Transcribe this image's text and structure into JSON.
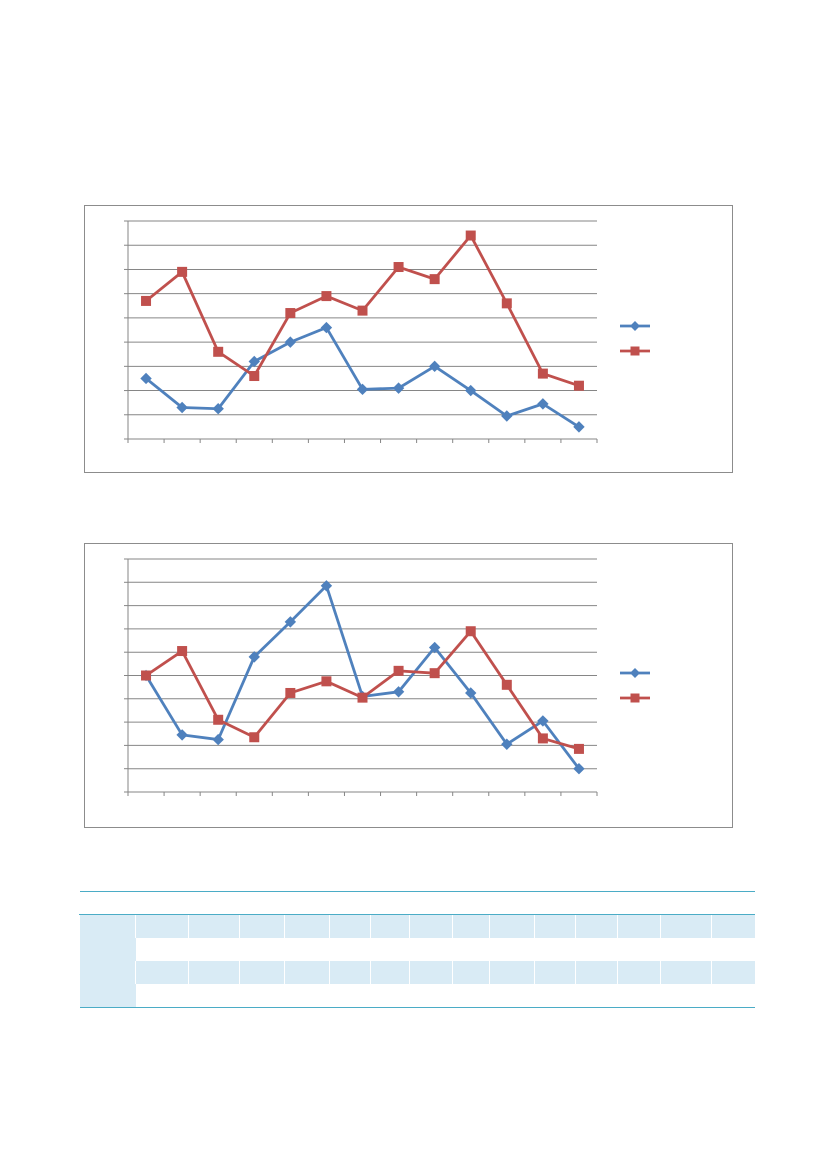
{
  "chart_data": [
    {
      "type": "line",
      "categories": [
        "",
        "",
        "",
        "",
        "",
        "",
        "",
        "",
        "",
        "",
        "",
        "",
        ""
      ],
      "series": [
        {
          "color": "#4f81bd",
          "marker": "diamond",
          "values": [
            2.5,
            1.3,
            1.25,
            3.2,
            4.0,
            4.6,
            2.05,
            2.1,
            3.0,
            2.0,
            0.95,
            1.45,
            0.5
          ]
        },
        {
          "color": "#c0504d",
          "marker": "square",
          "values": [
            5.7,
            6.9,
            3.6,
            2.6,
            5.2,
            5.9,
            5.3,
            7.1,
            6.6,
            8.4,
            5.6,
            2.7,
            2.2
          ]
        }
      ],
      "ylim": [
        0,
        9
      ],
      "grid": true,
      "legend": "right"
    },
    {
      "type": "line",
      "categories": [
        "",
        "",
        "",
        "",
        "",
        "",
        "",
        "",
        "",
        "",
        "",
        "",
        ""
      ],
      "series": [
        {
          "color": "#4f81bd",
          "marker": "diamond",
          "values": [
            5.0,
            2.45,
            2.25,
            5.8,
            7.3,
            8.85,
            4.1,
            4.3,
            6.2,
            4.25,
            2.05,
            3.05,
            1.0
          ]
        },
        {
          "color": "#c0504d",
          "marker": "square",
          "values": [
            5.0,
            6.05,
            3.1,
            2.35,
            4.25,
            4.75,
            4.05,
            5.2,
            5.1,
            6.9,
            4.6,
            2.3,
            1.85
          ]
        }
      ],
      "ylim": [
        0,
        10
      ],
      "grid": true,
      "legend": "right"
    }
  ],
  "table": {
    "columns": [
      "",
      "",
      "",
      "",
      "",
      "",
      "",
      "",
      "",
      "",
      "",
      "",
      "",
      "",
      ""
    ],
    "rows": [
      [
        "",
        "",
        "",
        "",
        "",
        "",
        "",
        "",
        "",
        "",
        "",
        "",
        "",
        "",
        ""
      ],
      [
        "",
        "",
        "",
        "",
        "",
        "",
        "",
        "",
        "",
        "",
        "",
        "",
        "",
        "",
        ""
      ],
      [
        "",
        "",
        "",
        "",
        "",
        "",
        "",
        "",
        "",
        "",
        "",
        "",
        "",
        "",
        ""
      ],
      [
        "",
        "",
        "",
        "",
        "",
        "",
        "",
        "",
        "",
        "",
        "",
        "",
        "",
        "",
        ""
      ]
    ]
  }
}
